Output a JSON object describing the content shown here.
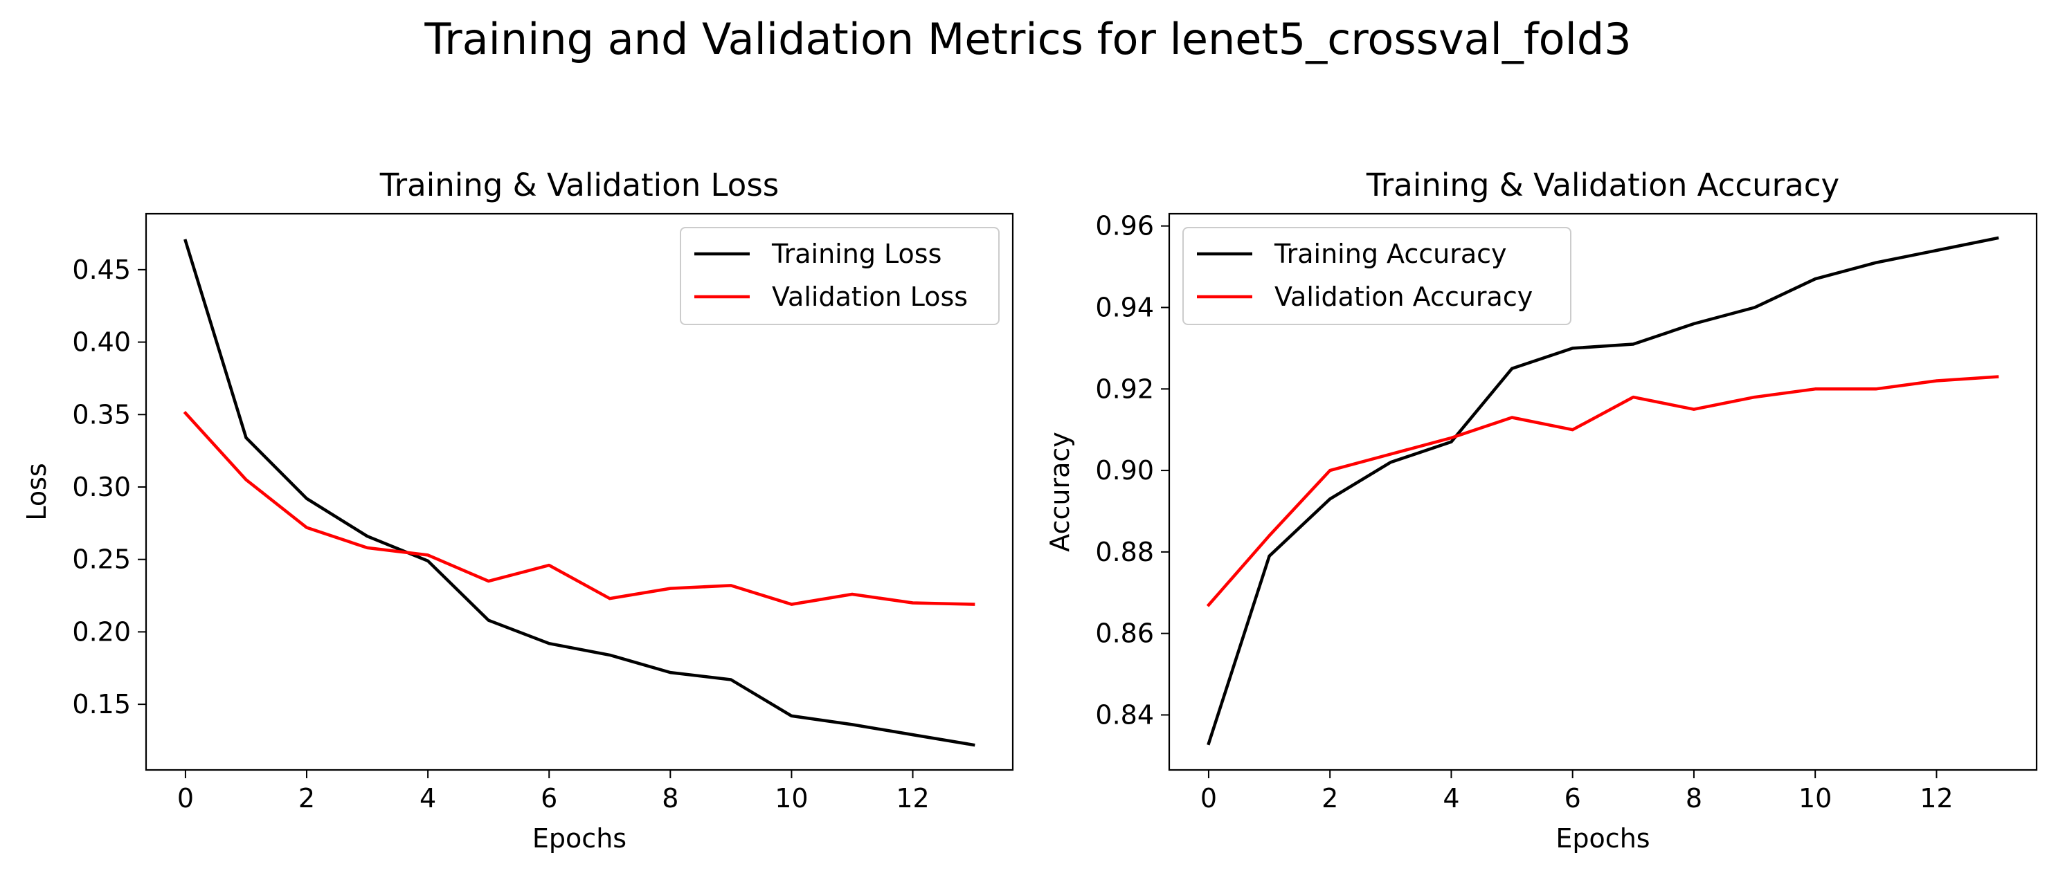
{
  "figure": {
    "suptitle": "Training and Validation Metrics for lenet5_crossval_fold3"
  },
  "chart_data": [
    {
      "type": "line",
      "title": "Training & Validation Loss",
      "xlabel": "Epochs",
      "ylabel": "Loss",
      "xlim": [
        -0.65,
        13.65
      ],
      "ylim": [
        0.1047,
        0.4886
      ],
      "xticks": [
        0,
        2,
        4,
        6,
        8,
        10,
        12
      ],
      "yticks": [
        0.15,
        0.2,
        0.25,
        0.3,
        0.35,
        0.4,
        0.45
      ],
      "ytick_labels": [
        "0.15",
        "0.20",
        "0.25",
        "0.30",
        "0.35",
        "0.40",
        "0.45"
      ],
      "legend_position": "upper right",
      "grid": false,
      "x": [
        0,
        1,
        2,
        3,
        4,
        5,
        6,
        7,
        8,
        9,
        10,
        11,
        12,
        13
      ],
      "series": [
        {
          "name": "Training Loss",
          "color": "#000000",
          "values": [
            0.47,
            0.334,
            0.292,
            0.266,
            0.249,
            0.208,
            0.192,
            0.184,
            0.172,
            0.167,
            0.142,
            0.136,
            0.129,
            0.122
          ]
        },
        {
          "name": "Validation Loss",
          "color": "#ff0000",
          "values": [
            0.351,
            0.305,
            0.272,
            0.258,
            0.253,
            0.235,
            0.246,
            0.223,
            0.23,
            0.232,
            0.219,
            0.226,
            0.22,
            0.219
          ]
        }
      ]
    },
    {
      "type": "line",
      "title": "Training & Validation Accuracy",
      "xlabel": "Epochs",
      "ylabel": "Accuracy",
      "xlim": [
        -0.65,
        13.65
      ],
      "ylim": [
        0.8265,
        0.963
      ],
      "xticks": [
        0,
        2,
        4,
        6,
        8,
        10,
        12
      ],
      "yticks": [
        0.84,
        0.86,
        0.88,
        0.9,
        0.92,
        0.94,
        0.96
      ],
      "ytick_labels": [
        "0.84",
        "0.86",
        "0.88",
        "0.90",
        "0.92",
        "0.94",
        "0.96"
      ],
      "legend_position": "upper left",
      "grid": false,
      "x": [
        0,
        1,
        2,
        3,
        4,
        5,
        6,
        7,
        8,
        9,
        10,
        11,
        12,
        13
      ],
      "series": [
        {
          "name": "Training Accuracy",
          "color": "#000000",
          "values": [
            0.833,
            0.879,
            0.893,
            0.902,
            0.907,
            0.925,
            0.93,
            0.931,
            0.936,
            0.94,
            0.947,
            0.951,
            0.954,
            0.957
          ]
        },
        {
          "name": "Validation Accuracy",
          "color": "#ff0000",
          "values": [
            0.867,
            0.884,
            0.9,
            0.904,
            0.908,
            0.913,
            0.91,
            0.918,
            0.915,
            0.918,
            0.92,
            0.92,
            0.922,
            0.923
          ]
        }
      ]
    }
  ]
}
